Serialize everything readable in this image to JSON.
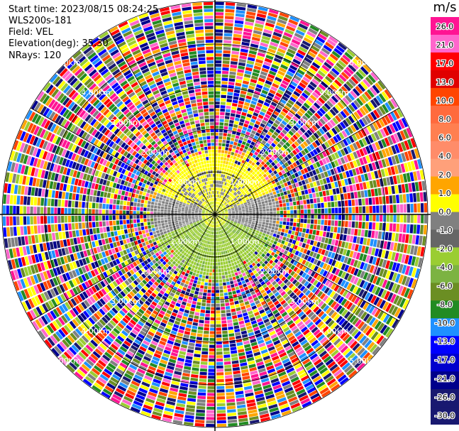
{
  "header": {
    "start_time": "Start time: 2023/08/15 08:24:25",
    "instrument": "WLS200s-181",
    "field": "Field: VEL",
    "elevation": "Elevation(deg): 35.30",
    "nrays": "NRays: 120"
  },
  "colorbar": {
    "unit": "m/s",
    "labels": [
      "26.0",
      "21.0",
      "17.0",
      "13.0",
      "10.0",
      "8.0",
      "6.0",
      "4.0",
      "2.0",
      "1.0",
      "0.0",
      "-1.0",
      "-2.0",
      "-4.0",
      "-6.0",
      "-8.0",
      "-10.0",
      "-13.0",
      "-17.0",
      "-21.0",
      "-26.0",
      "-30.0"
    ],
    "colors": [
      "#ff1493",
      "#ff66cc",
      "#ff0000",
      "#e00000",
      "#ff4500",
      "#ff6a3d",
      "#ff7f50",
      "#ff8c69",
      "#ffa07a",
      "#ffa500",
      "#ffff00",
      "#808080",
      "#666666",
      "#9acd32",
      "#7cb342",
      "#6b8e23",
      "#228b22",
      "#1e90ff",
      "#0000ff",
      "#0000cd",
      "#00008b",
      "#191970",
      "#191970"
    ]
  },
  "chart_data": {
    "type": "heatmap",
    "subtype": "ppi-polar",
    "field": "VEL",
    "unit": "m/s",
    "nrays": 120,
    "range_rings_km": [
      1.0,
      2.0,
      3.0,
      4.0,
      5.0
    ],
    "range_labels": [
      "1.00km",
      "2.00km",
      "3.00km",
      "4.00km",
      "5.00km"
    ],
    "azimuth_spokes_deg": [
      0,
      30,
      60,
      90,
      120,
      150,
      180,
      210,
      240,
      270,
      300,
      330
    ],
    "max_range_km": 5.0,
    "valid_data_range_km": 1.6
  }
}
